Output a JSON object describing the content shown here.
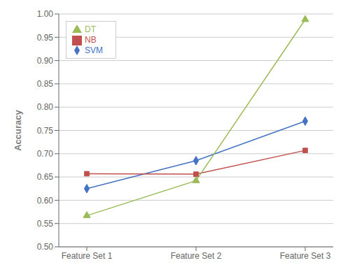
{
  "chart_data": {
    "type": "line",
    "categories": [
      "Feature Set 1",
      "Feature Set 2",
      "Feature Set 3"
    ],
    "series": [
      {
        "name": "SVM",
        "color": "#4472C4",
        "marker": "diamond",
        "values": [
          0.625,
          0.685,
          0.77
        ]
      },
      {
        "name": "NB",
        "color": "#C0504D",
        "marker": "square",
        "values": [
          0.657,
          0.656,
          0.707
        ]
      },
      {
        "name": "DT",
        "color": "#9BBB59",
        "marker": "triangle",
        "values": [
          0.567,
          0.642,
          0.988
        ]
      }
    ],
    "ylabel": "Accuracy",
    "ylim": [
      0.5,
      1.0
    ],
    "yticks": [
      {
        "value": 0.5,
        "label": "0.50"
      },
      0.55,
      {
        "value": 0.6,
        "label": "0.60"
      },
      0.65,
      {
        "value": 0.7,
        "label": "0.70"
      },
      0.75,
      {
        "value": 0.8,
        "label": "0.80"
      },
      0.85,
      {
        "value": 0.9,
        "label": "0.90"
      },
      0.95,
      {
        "value": 1.0,
        "label": "1.00"
      }
    ],
    "grid": "y",
    "legend": "upper left"
  }
}
